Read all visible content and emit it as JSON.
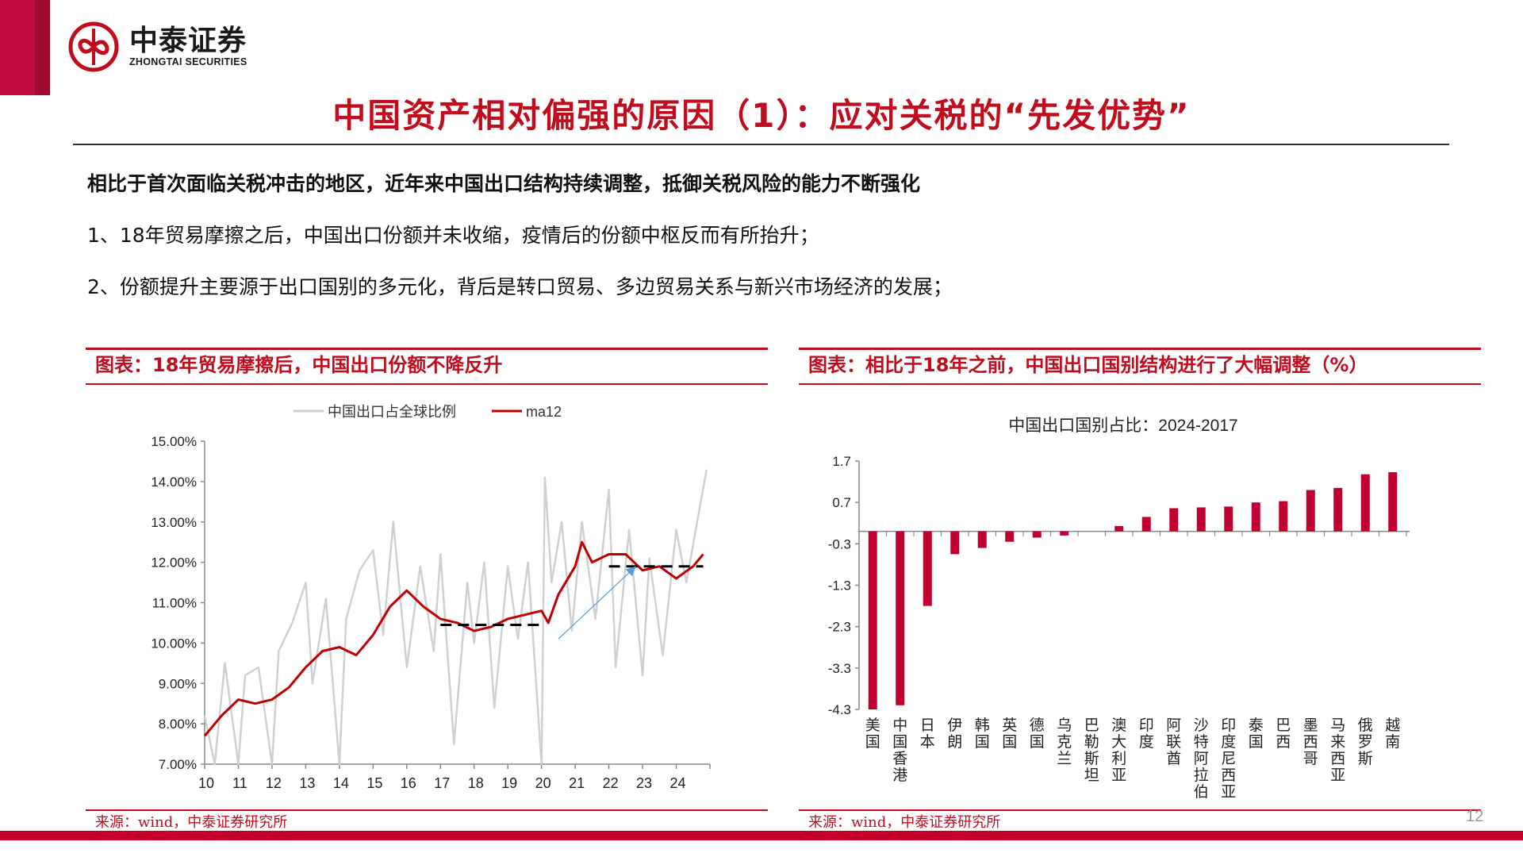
{
  "header": {
    "logo_cn": "中泰证券",
    "logo_en": "ZHONGTAI SECURITIES",
    "title": "中国资产相对偏强的原因（1）：应对关税的“先发优势”"
  },
  "body": {
    "lead": "相比于首次面临关税冲击的地区，近年来中国出口结构持续调整，抵御关税风险的能力不断强化",
    "points": [
      "1、18年贸易摩擦之后，中国出口份额并未收缩，疫情后的份额中枢反而有所抬升；",
      "2、份额提升主要源于出口国别的多元化，背后是转口贸易、多边贸易关系与新兴市场经济的发展；"
    ]
  },
  "left_chart": {
    "heading": "图表：18年贸易摩擦后，中国出口份额不降反升",
    "source": "来源：wind，中泰证券研究所"
  },
  "right_chart": {
    "heading": "图表：相比于18年之前，中国出口国别结构进行了大幅调整（%）",
    "source": "来源：wind，中泰证券研究所"
  },
  "page_number": "12",
  "colors": {
    "brand_red": "#c00c1c",
    "bar_red": "#c0002f",
    "line_red": "#c00000",
    "raw_gray": "#d0d0d0",
    "arrow_blue": "#5b9bd5"
  },
  "chart_data": [
    {
      "type": "line",
      "title": "",
      "legend": [
        "中国出口占全球比例",
        "ma12"
      ],
      "legend_position": "top",
      "xlabel": "",
      "ylabel": "",
      "x_ticks": [
        "10",
        "11",
        "12",
        "13",
        "14",
        "15",
        "16",
        "17",
        "18",
        "19",
        "20",
        "21",
        "22",
        "23",
        "24"
      ],
      "y_ticks": [
        "7.00%",
        "8.00%",
        "9.00%",
        "10.00%",
        "11.00%",
        "12.00%",
        "13.00%",
        "14.00%",
        "15.00%"
      ],
      "ylim": [
        7.0,
        15.0
      ],
      "grid": false,
      "series": [
        {
          "name": "ma12",
          "color": "#c00000",
          "x": [
            2010.0,
            2010.5,
            2011.0,
            2011.5,
            2012.0,
            2012.5,
            2013.0,
            2013.5,
            2014.0,
            2014.5,
            2015.0,
            2015.5,
            2016.0,
            2016.5,
            2017.0,
            2017.5,
            2018.0,
            2018.5,
            2019.0,
            2019.5,
            2020.0,
            2020.2,
            2020.5,
            2021.0,
            2021.2,
            2021.5,
            2022.0,
            2022.5,
            2023.0,
            2023.5,
            2024.0,
            2024.5,
            2024.8
          ],
          "values": [
            7.7,
            8.2,
            8.6,
            8.5,
            8.6,
            8.9,
            9.4,
            9.8,
            9.9,
            9.7,
            10.2,
            10.9,
            11.3,
            10.9,
            10.6,
            10.5,
            10.3,
            10.4,
            10.6,
            10.7,
            10.8,
            10.5,
            11.2,
            11.9,
            12.5,
            12.0,
            12.2,
            12.2,
            11.8,
            11.9,
            11.6,
            11.9,
            12.2
          ]
        },
        {
          "name": "中国出口占全球比例",
          "color": "#d0d0d0",
          "x": [
            2010.0,
            2010.3,
            2010.6,
            2011.0,
            2011.2,
            2011.6,
            2012.0,
            2012.2,
            2012.6,
            2013.0,
            2013.2,
            2013.6,
            2014.0,
            2014.2,
            2014.6,
            2015.0,
            2015.3,
            2015.6,
            2016.0,
            2016.4,
            2016.8,
            2017.0,
            2017.4,
            2017.8,
            2018.0,
            2018.3,
            2018.6,
            2019.0,
            2019.3,
            2019.6,
            2020.0,
            2020.1,
            2020.3,
            2020.6,
            2020.9,
            2021.2,
            2021.6,
            2022.0,
            2022.2,
            2022.6,
            2023.0,
            2023.2,
            2023.6,
            2024.0,
            2024.3,
            2024.6,
            2024.9
          ],
          "values": [
            8.2,
            7.0,
            9.5,
            7.0,
            9.2,
            9.4,
            7.0,
            9.8,
            10.5,
            11.5,
            9.0,
            11.1,
            7.0,
            10.6,
            11.8,
            12.3,
            10.2,
            13.0,
            9.4,
            11.9,
            9.8,
            12.2,
            7.5,
            11.5,
            10.0,
            12.0,
            8.4,
            11.9,
            10.1,
            12.0,
            7.0,
            14.1,
            11.5,
            13.0,
            10.3,
            13.0,
            10.6,
            13.8,
            9.4,
            12.8,
            9.2,
            12.1,
            9.7,
            12.8,
            11.5,
            12.9,
            14.3
          ]
        }
      ],
      "annotations": [
        {
          "type": "dashed_hline",
          "x_range": [
            2017.0,
            2020.0
          ],
          "value": 10.45
        },
        {
          "type": "dashed_hline",
          "x_range": [
            2022.0,
            2024.8
          ],
          "value": 11.9
        },
        {
          "type": "arrow",
          "from": [
            2020.5,
            10.1
          ],
          "to": [
            2022.8,
            11.9
          ],
          "color": "#5b9bd5"
        }
      ]
    },
    {
      "type": "bar",
      "title": "中国出口国别占比：2024-2017",
      "categories": [
        "美国",
        "中国香港",
        "日本",
        "伊朗",
        "韩国",
        "英国",
        "德国",
        "乌克兰",
        "巴勒斯坦",
        "澳大利亚",
        "印度",
        "阿联酋",
        "沙特阿拉伯",
        "印度尼西亚",
        "泰国",
        "巴西",
        "墨西哥",
        "马来西亚",
        "俄罗斯",
        "越南"
      ],
      "values": [
        -4.3,
        -4.2,
        -1.8,
        -0.55,
        -0.4,
        -0.25,
        -0.15,
        -0.1,
        0.0,
        0.13,
        0.35,
        0.56,
        0.58,
        0.6,
        0.7,
        0.73,
        1.0,
        1.05,
        1.38,
        1.43
      ],
      "y_ticks": [
        "1.7",
        "0.7",
        "-0.3",
        "-1.3",
        "-2.3",
        "-3.3",
        "-4.3"
      ],
      "ylim": [
        -4.3,
        1.7
      ],
      "xlabel": "",
      "ylabel": "",
      "grid": false,
      "legend": []
    }
  ]
}
